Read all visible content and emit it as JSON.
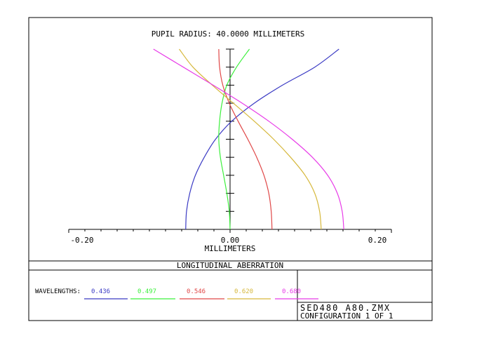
{
  "chart_data": {
    "type": "line",
    "title": "PUPIL RADIUS: 40.0000 MILLIMETERS",
    "xlabel": "MILLIMETERS",
    "xlim": [
      -0.2,
      0.2
    ],
    "ylim": [
      0,
      1
    ],
    "x_tick_labels": [
      "-0.20",
      "0.00",
      "0.20"
    ],
    "plot_name": "LONGITUDINAL ABERRATION",
    "legend_title": "WAVELENGTHS:",
    "series": [
      {
        "name": "0.436",
        "color": "#3b3bc4",
        "x": [
          -0.055,
          -0.054,
          -0.05,
          -0.043,
          -0.032,
          -0.018,
          0.002,
          0.03,
          0.065,
          0.105,
          0.135
        ],
        "y": [
          0,
          0.1,
          0.2,
          0.3,
          0.4,
          0.5,
          0.6,
          0.7,
          0.8,
          0.9,
          1
        ]
      },
      {
        "name": "0.497",
        "color": "#3cf03c",
        "x": [
          0.0,
          -0.001,
          -0.004,
          -0.008,
          -0.012,
          -0.014,
          -0.013,
          -0.01,
          -0.004,
          0.008,
          0.024
        ],
        "y": [
          0,
          0.1,
          0.2,
          0.3,
          0.4,
          0.5,
          0.6,
          0.7,
          0.8,
          0.9,
          1
        ]
      },
      {
        "name": "0.546",
        "color": "#e04848",
        "x": [
          0.052,
          0.051,
          0.048,
          0.042,
          0.033,
          0.022,
          0.01,
          -0.001,
          -0.009,
          -0.013,
          -0.014
        ],
        "y": [
          0,
          0.1,
          0.2,
          0.3,
          0.4,
          0.5,
          0.6,
          0.7,
          0.8,
          0.9,
          1
        ]
      },
      {
        "name": "0.620",
        "color": "#d6b83c",
        "x": [
          0.113,
          0.111,
          0.105,
          0.093,
          0.075,
          0.054,
          0.03,
          0.004,
          -0.022,
          -0.046,
          -0.063
        ],
        "y": [
          0,
          0.1,
          0.2,
          0.3,
          0.4,
          0.5,
          0.6,
          0.7,
          0.8,
          0.9,
          1
        ]
      },
      {
        "name": "0.680",
        "color": "#e83ce8",
        "x": [
          0.141,
          0.139,
          0.133,
          0.121,
          0.102,
          0.077,
          0.048,
          0.015,
          -0.021,
          -0.058,
          -0.095
        ],
        "y": [
          0,
          0.1,
          0.2,
          0.3,
          0.4,
          0.5,
          0.6,
          0.7,
          0.8,
          0.9,
          1
        ]
      }
    ]
  },
  "footer": {
    "file_name": "SED480 A80.ZMX",
    "configuration": "CONFIGURATION 1 OF 1"
  }
}
